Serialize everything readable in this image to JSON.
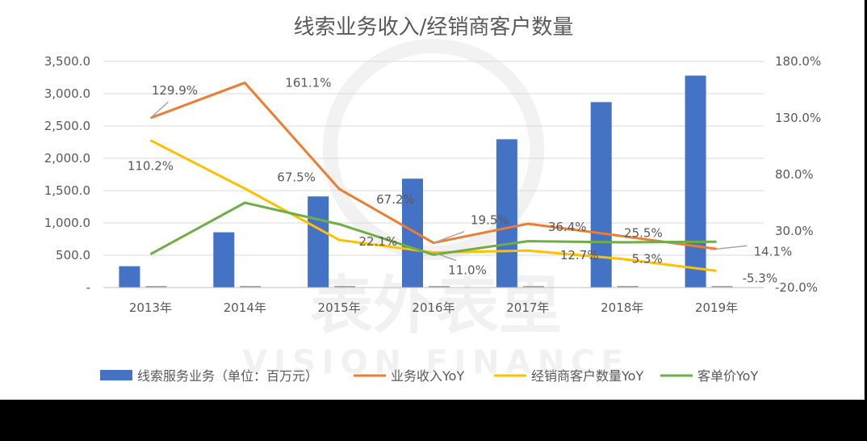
{
  "chart_data": {
    "type": "bar",
    "title": "线索业务收入/经销商客户数量",
    "categories": [
      "2013年",
      "2014年",
      "2015年",
      "2016年",
      "2017年",
      "2018年",
      "2019年"
    ],
    "left_axis": {
      "ylim": [
        0,
        3500
      ],
      "ticks": [
        "-",
        "500.0",
        "1,000.0",
        "1,500.0",
        "2,000.0",
        "2,500.0",
        "3,000.0",
        "3,500.0"
      ]
    },
    "right_axis": {
      "ylim": [
        -20,
        180
      ],
      "ticks": [
        "-20.0%",
        "30.0%",
        "80.0%",
        "130.0%",
        "180.0%"
      ]
    },
    "grid": true,
    "legend_position": "bottom",
    "series": [
      {
        "name": "线索服务业务（单位：百万元）",
        "type": "bar",
        "axis": "left",
        "color": "#4472C4",
        "values": [
          330,
          855,
          1410,
          1685,
          2295,
          2870,
          3280
        ]
      },
      {
        "name": "业务收入YoY",
        "type": "line",
        "axis": "right",
        "color": "#ED7D31",
        "values": [
          129.9,
          161.1,
          67.2,
          19.5,
          36.4,
          25.5,
          14.1
        ],
        "labels": [
          "129.9%",
          "161.1%",
          "67.2%",
          "19.5%",
          "36.4%",
          "25.5%",
          "14.1%"
        ]
      },
      {
        "name": "经销商客户数量YoY",
        "type": "line",
        "axis": "right",
        "color": "#FFC000",
        "values": [
          110.2,
          67.5,
          22.1,
          11.0,
          12.7,
          5.3,
          -5.3
        ],
        "labels": [
          "110.2%",
          "67.5%",
          "22.1%",
          "11.0%",
          "12.7%",
          "5.3%",
          "-5.3%"
        ]
      },
      {
        "name": "客单价YoY",
        "type": "line",
        "axis": "right",
        "color": "#70AD47",
        "values": [
          9.5,
          55.0,
          36.0,
          9.0,
          21.0,
          20.0,
          20.5
        ]
      }
    ]
  },
  "watermark": {
    "cn": "表外表里",
    "en": "VISION FINANCE"
  }
}
